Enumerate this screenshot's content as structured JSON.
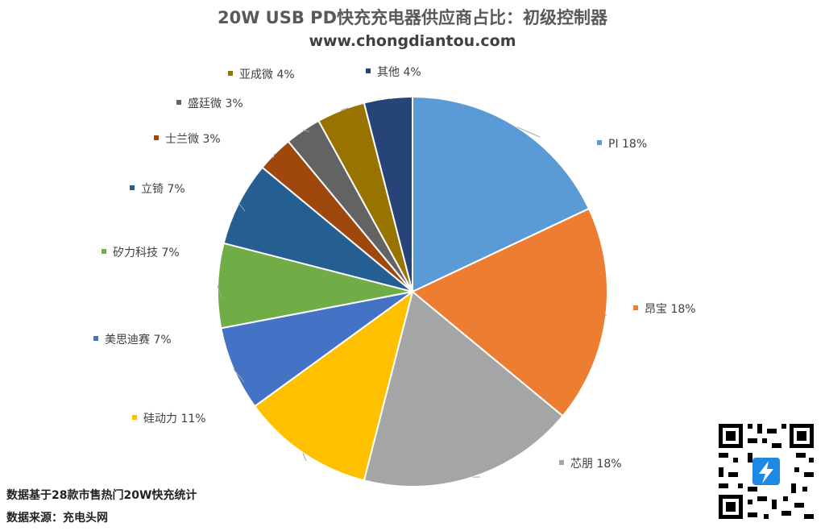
{
  "header": {
    "title": "20W USB PD快充充电器供应商占比：初级控制器",
    "subtitle": "www.chongdiantou.com"
  },
  "footer": {
    "note": "数据基于28款市售热门20W快充统计",
    "source": "数据来源：充电头网"
  },
  "chart_data": {
    "type": "pie",
    "title": "20W USB PD快充充电器供应商占比：初级控制器",
    "slices": [
      {
        "name": "PI",
        "value": 18,
        "label": "PI 18%",
        "color": "#5B9BD5"
      },
      {
        "name": "昂宝",
        "value": 18,
        "label": "昂宝 18%",
        "color": "#ED7D31"
      },
      {
        "name": "芯朋",
        "value": 18,
        "label": "芯朋 18%",
        "color": "#A5A5A5"
      },
      {
        "name": "硅动力",
        "value": 11,
        "label": "硅动力 11%",
        "color": "#FFC000"
      },
      {
        "name": "美思迪赛",
        "value": 7,
        "label": "美思迪赛 7%",
        "color": "#4472C4"
      },
      {
        "name": "矽力科技",
        "value": 7,
        "label": "矽力科技 7%",
        "color": "#70AD47"
      },
      {
        "name": "立锜",
        "value": 7,
        "label": "立锜 7%",
        "color": "#255E91"
      },
      {
        "name": "士兰微",
        "value": 3,
        "label": "士兰微 3%",
        "color": "#9E480E"
      },
      {
        "name": "盛廷微",
        "value": 3,
        "label": "盛廷微 3%",
        "color": "#636363"
      },
      {
        "name": "亚成微",
        "value": 4,
        "label": "亚成微 4%",
        "color": "#997300"
      },
      {
        "name": "其他",
        "value": 4,
        "label": "其他 4%",
        "color": "#264478"
      }
    ]
  }
}
